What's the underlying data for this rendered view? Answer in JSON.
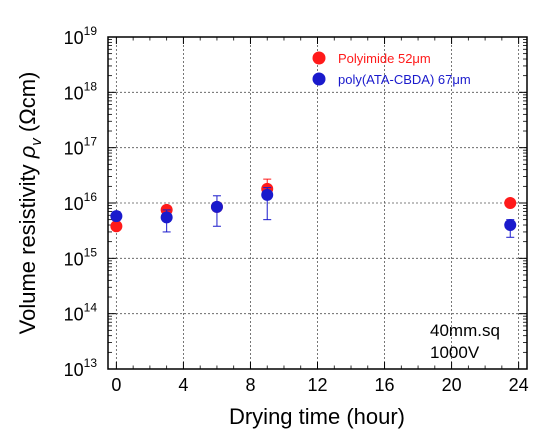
{
  "chart_data": {
    "type": "scatter",
    "xlabel": "Drying time (hour)",
    "ylabel": "Volume resistivity",
    "ylabel_symbol": "ρ",
    "ylabel_subscript": "v",
    "ylabel_unit": "(Ωcm)",
    "xlim": [
      -0.5,
      24.5
    ],
    "ylim": [
      10000000000000.0,
      1e+19
    ],
    "yscale": "log",
    "x_ticks": [
      0,
      4,
      8,
      12,
      16,
      20,
      24
    ],
    "y_tick_labels": [
      {
        "base": "10",
        "exp": "19",
        "value": 1e+19
      },
      {
        "base": "10",
        "exp": "18",
        "value": 1e+18
      },
      {
        "base": "10",
        "exp": "17",
        "value": 1e+17
      },
      {
        "base": "10",
        "exp": "16",
        "value": 1e+16
      },
      {
        "base": "10",
        "exp": "15",
        "value": 1000000000000000.0
      },
      {
        "base": "10",
        "exp": "14",
        "value": 100000000000000.0
      },
      {
        "base": "10",
        "exp": "13",
        "value": 10000000000000.0
      }
    ],
    "grid": true,
    "legend_position": "top-right",
    "series": [
      {
        "name": "Polyimide 52μm",
        "color": "#ff1a1a",
        "points": [
          {
            "x": 0,
            "y": 3800000000000000.0,
            "err_low": 3800000000000000.0,
            "err_high": 3800000000000000.0
          },
          {
            "x": 3,
            "y": 7500000000000000.0,
            "err_low": 7500000000000000.0,
            "err_high": 7500000000000000.0
          },
          {
            "x": 6,
            "y": 8500000000000000.0,
            "err_low": 8500000000000000.0,
            "err_high": 8500000000000000.0
          },
          {
            "x": 9,
            "y": 1.8e+16,
            "err_low": 1.3e+16,
            "err_high": 2.7e+16
          },
          {
            "x": 23.5,
            "y": 1e+16,
            "err_low": 1e+16,
            "err_high": 1e+16
          }
        ]
      },
      {
        "name": "poly(ATA-CBDA) 67μm",
        "color": "#1a1acc",
        "points": [
          {
            "x": 0,
            "y": 5800000000000000.0,
            "err_low": 4800000000000000.0,
            "err_high": 7000000000000000.0
          },
          {
            "x": 3,
            "y": 5500000000000000.0,
            "err_low": 3000000000000000.0,
            "err_high": 7500000000000000.0
          },
          {
            "x": 6,
            "y": 8500000000000000.0,
            "err_low": 3800000000000000.0,
            "err_high": 1.35e+16
          },
          {
            "x": 9,
            "y": 1.4e+16,
            "err_low": 5000000000000000.0,
            "err_high": 1.9e+16
          },
          {
            "x": 23.5,
            "y": 4000000000000000.0,
            "err_low": 2400000000000000.0,
            "err_high": 5000000000000000.0
          }
        ]
      }
    ],
    "annotations": [
      "40mm.sq",
      "1000V"
    ]
  }
}
